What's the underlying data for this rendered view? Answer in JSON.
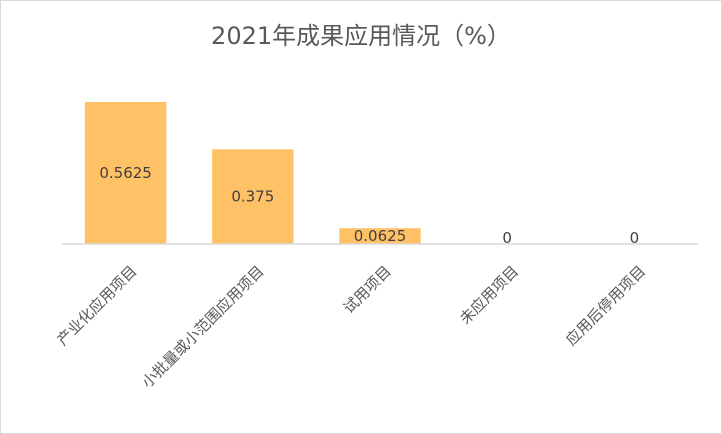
{
  "chart_data": {
    "type": "bar",
    "title": "2021年成果应用情况（%）",
    "categories": [
      "产业化应用项目",
      "小批量或小范围应用项目",
      "试用项目",
      "未应用项目",
      "应用后停用项目"
    ],
    "values": [
      0.5625,
      0.375,
      0.0625,
      0,
      0
    ],
    "data_labels": [
      "0.5625",
      "0.375",
      "0.0625",
      "0",
      "0"
    ],
    "ylim": [
      0,
      0.5625
    ],
    "xlabel": "",
    "ylabel": "",
    "grid": false,
    "legend": "none",
    "bar_color": "#FFC166",
    "axis_color": "#d9d9d9"
  }
}
